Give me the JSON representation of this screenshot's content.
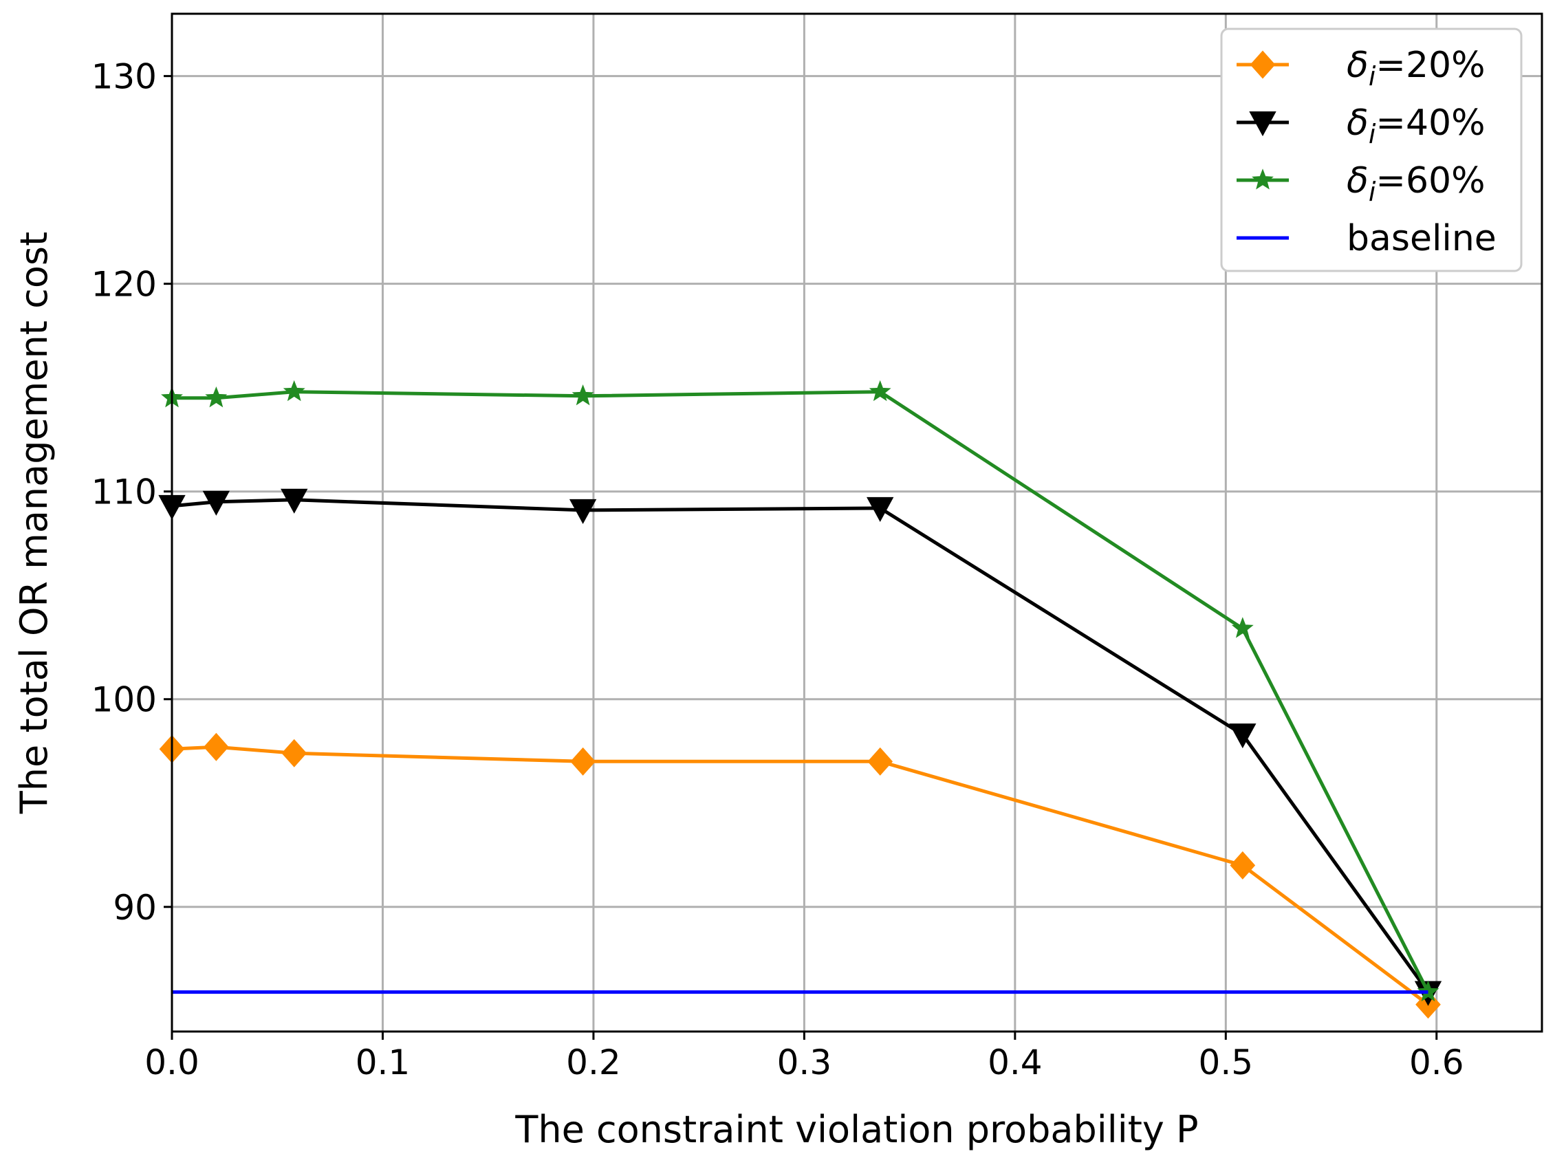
{
  "chart_data": {
    "type": "line",
    "title": "",
    "xlabel": "The constraint violation probability P",
    "ylabel": "The total OR management cost",
    "xlim": [
      0.0,
      0.65
    ],
    "ylim": [
      84.0,
      133.0
    ],
    "xticks": [
      0.0,
      0.1,
      0.2,
      0.3,
      0.4,
      0.5,
      0.6
    ],
    "yticks": [
      90,
      100,
      110,
      120,
      130
    ],
    "xtick_labels": [
      "0.0",
      "0.1",
      "0.2",
      "0.3",
      "0.4",
      "0.5",
      "0.6"
    ],
    "ytick_labels": [
      "90",
      "100",
      "110",
      "120",
      "130"
    ],
    "grid": true,
    "legend_position": "top-right",
    "series": [
      {
        "name": "δi=20%",
        "legend_base": "δ",
        "legend_sub": "i",
        "legend_rest": "=20%",
        "color": "#ff8c00",
        "marker": "diamond",
        "x": [
          0.0,
          0.021,
          0.058,
          0.195,
          0.336,
          0.508,
          0.596
        ],
        "y": [
          97.6,
          97.7,
          97.4,
          97.0,
          97.0,
          92.0,
          85.3
        ]
      },
      {
        "name": "δi=40%",
        "legend_base": "δ",
        "legend_sub": "i",
        "legend_rest": "=40%",
        "color": "#000000",
        "marker": "triangle-down",
        "x": [
          0.0,
          0.021,
          0.058,
          0.195,
          0.336,
          0.508,
          0.596
        ],
        "y": [
          109.3,
          109.5,
          109.6,
          109.1,
          109.2,
          98.3,
          85.9
        ]
      },
      {
        "name": "δi=60%",
        "legend_base": "δ",
        "legend_sub": "i",
        "legend_rest": "=60%",
        "color": "#228b22",
        "marker": "star",
        "x": [
          0.0,
          0.021,
          0.058,
          0.195,
          0.336,
          0.508,
          0.596
        ],
        "y": [
          114.5,
          114.5,
          114.8,
          114.6,
          114.8,
          103.4,
          85.9
        ]
      },
      {
        "name": "baseline",
        "legend_base": "baseline",
        "legend_sub": "",
        "legend_rest": "",
        "color": "#0000ff",
        "marker": "none",
        "x": [
          0.0,
          0.596
        ],
        "y": [
          85.9,
          85.9
        ]
      }
    ]
  }
}
